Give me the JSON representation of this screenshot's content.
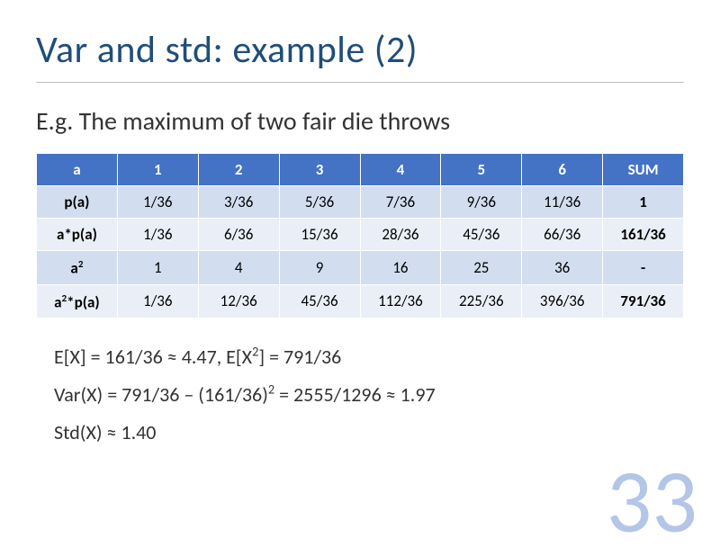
{
  "title": "Var and std: example (2)",
  "subtitle": "E.g. The maximum of two fair die throws",
  "table": {
    "headers": [
      "a",
      "1",
      "2",
      "3",
      "4",
      "5",
      "6",
      "SUM"
    ],
    "rows": [
      {
        "label": "p(a)",
        "cells": [
          "1/36",
          "3/36",
          "5/36",
          "7/36",
          "9/36",
          "11/36"
        ],
        "sum": "1"
      },
      {
        "label": "a*p(a)",
        "cells": [
          "1/36",
          "6/36",
          "15/36",
          "28/36",
          "45/36",
          "66/36"
        ],
        "sum": "161/36"
      },
      {
        "label": "a²",
        "cells": [
          "1",
          "4",
          "9",
          "16",
          "25",
          "36"
        ],
        "sum": "-"
      },
      {
        "label": "a²*p(a)",
        "cells": [
          "1/36",
          "12/36",
          "45/36",
          "112/36",
          "225/36",
          "396/36"
        ],
        "sum": "791/36"
      }
    ],
    "header_bg": "#4472c4",
    "header_fg": "#ffffff",
    "band_a_bg": "#d2deef",
    "band_b_bg": "#eaeff7",
    "border_color": "#ffffff"
  },
  "calc_lines": {
    "line1_a": "E[X] = 161/36 ≈ 4.47, E[X",
    "line1_b": "] = 791/36",
    "line2_a": "Var(X) = 791/36 – (161/36)",
    "line2_b": " = 2555/1296 ≈ 1.97",
    "line3": "Std(X) ≈ 1.40"
  },
  "page_number": "33",
  "colors": {
    "title": "#1f4e79",
    "text": "#333333",
    "pagenum": "#b3c6e7",
    "background": "#ffffff"
  },
  "fontsize": {
    "title": 42,
    "subtitle": 28,
    "table": 17,
    "calc": 22,
    "pagenum": 100
  }
}
